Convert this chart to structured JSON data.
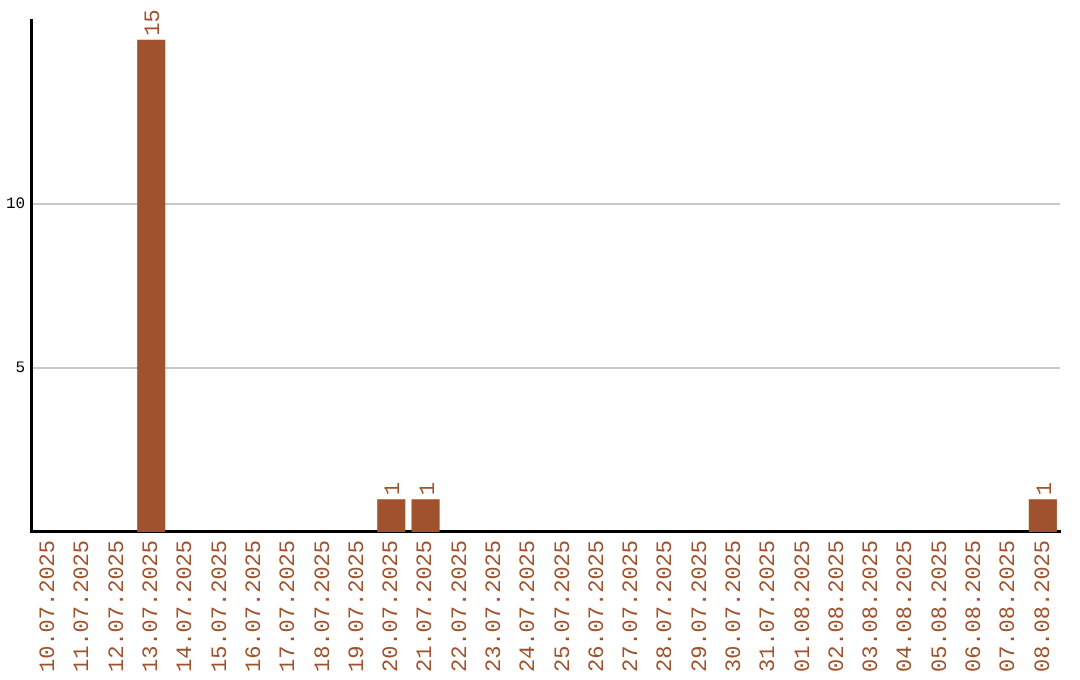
{
  "chart_data": {
    "type": "bar",
    "categories": [
      "10.07.2025",
      "11.07.2025",
      "12.07.2025",
      "13.07.2025",
      "14.07.2025",
      "15.07.2025",
      "16.07.2025",
      "17.07.2025",
      "18.07.2025",
      "19.07.2025",
      "20.07.2025",
      "21.07.2025",
      "22.07.2025",
      "23.07.2025",
      "24.07.2025",
      "25.07.2025",
      "26.07.2025",
      "27.07.2025",
      "28.07.2025",
      "29.07.2025",
      "30.07.2025",
      "31.07.2025",
      "01.08.2025",
      "02.08.2025",
      "03.08.2025",
      "04.08.2025",
      "05.08.2025",
      "06.08.2025",
      "07.08.2025",
      "08.08.2025"
    ],
    "values": [
      0,
      0,
      0,
      15,
      0,
      0,
      0,
      0,
      0,
      0,
      1,
      1,
      0,
      0,
      0,
      0,
      0,
      0,
      0,
      0,
      0,
      0,
      0,
      0,
      0,
      0,
      0,
      0,
      0,
      1
    ],
    "value_labels": [
      null,
      null,
      null,
      "15",
      null,
      null,
      null,
      null,
      null,
      null,
      "1",
      "1",
      null,
      null,
      null,
      null,
      null,
      null,
      null,
      null,
      null,
      null,
      null,
      null,
      null,
      null,
      null,
      null,
      null,
      "1"
    ],
    "color": "#a0522d",
    "ylim": [
      0,
      15.6
    ],
    "yticks": [
      5,
      10
    ],
    "grid": "y"
  }
}
